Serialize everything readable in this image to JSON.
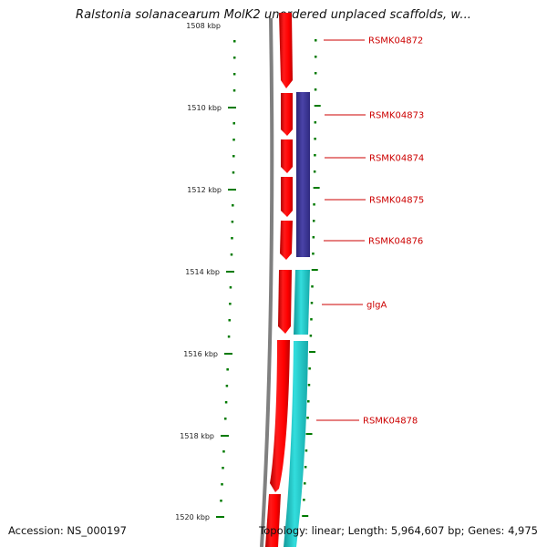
{
  "title": "Ralstonia solanacearum MolK2 unordered unplaced scaffolds, w...",
  "ruler": {
    "top_label": "1508 kbp",
    "ticks": [
      {
        "label": "1510 kbp"
      },
      {
        "label": "1512 kbp"
      },
      {
        "label": "1514 kbp"
      },
      {
        "label": "1516 kbp"
      },
      {
        "label": "1518 kbp"
      },
      {
        "label": "1520 kbp"
      }
    ]
  },
  "genes": [
    {
      "name": "RSMK04872"
    },
    {
      "name": "RSMK04873"
    },
    {
      "name": "RSMK04874"
    },
    {
      "name": "RSMK04875"
    },
    {
      "name": "RSMK04876"
    },
    {
      "name": "glgA"
    },
    {
      "name": "RSMK04878"
    }
  ],
  "colors": {
    "gene": "#ff0000",
    "cds_purple": "#3c3591",
    "cds_cyan": "#22cccc",
    "backbone": "#808080",
    "ruler": "#007a00",
    "label": "#cc0000"
  },
  "footer": {
    "accession": "Accession: NS_000197",
    "stats": "Topology: linear; Length: 5,964,607 bp; Genes: 4,975"
  }
}
